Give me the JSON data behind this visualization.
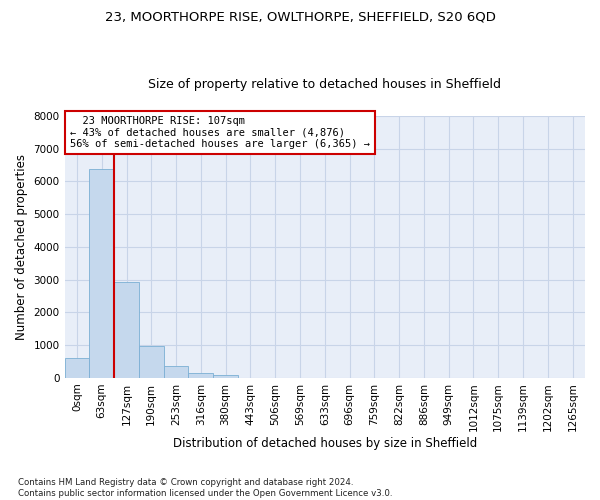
{
  "title1": "23, MOORTHORPE RISE, OWLTHORPE, SHEFFIELD, S20 6QD",
  "title2": "Size of property relative to detached houses in Sheffield",
  "xlabel": "Distribution of detached houses by size in Sheffield",
  "ylabel": "Number of detached properties",
  "footnote": "Contains HM Land Registry data © Crown copyright and database right 2024.\nContains public sector information licensed under the Open Government Licence v3.0.",
  "bar_labels": [
    "0sqm",
    "63sqm",
    "127sqm",
    "190sqm",
    "253sqm",
    "316sqm",
    "380sqm",
    "443sqm",
    "506sqm",
    "569sqm",
    "633sqm",
    "696sqm",
    "759sqm",
    "822sqm",
    "886sqm",
    "949sqm",
    "1012sqm",
    "1075sqm",
    "1139sqm",
    "1202sqm",
    "1265sqm"
  ],
  "bar_values": [
    620,
    6370,
    2920,
    975,
    360,
    155,
    85,
    0,
    0,
    0,
    0,
    0,
    0,
    0,
    0,
    0,
    0,
    0,
    0,
    0,
    0
  ],
  "bar_color": "#c5d8ed",
  "bar_edge_color": "#7bafd4",
  "vline_color": "#cc0000",
  "annotation_text": "  23 MOORTHORPE RISE: 107sqm  \n← 43% of detached houses are smaller (4,876)\n56% of semi-detached houses are larger (6,365) →",
  "annotation_box_color": "#ffffff",
  "annotation_box_edge": "#cc0000",
  "ylim": [
    0,
    8000
  ],
  "yticks": [
    0,
    1000,
    2000,
    3000,
    4000,
    5000,
    6000,
    7000,
    8000
  ],
  "grid_color": "#c8d4e8",
  "bg_color": "#e8eef8",
  "title1_fontsize": 9.5,
  "title2_fontsize": 9,
  "axis_fontsize": 8.5,
  "tick_fontsize": 7.5,
  "annot_fontsize": 7.5
}
